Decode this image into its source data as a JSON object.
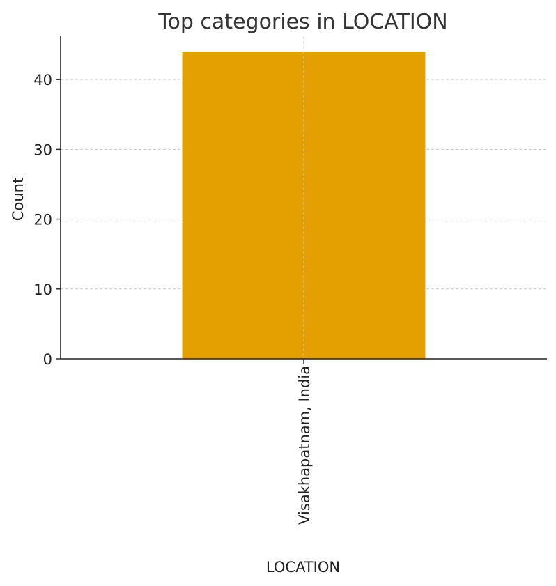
{
  "chart_data": {
    "type": "bar",
    "title": "Top categories in LOCATION",
    "xlabel": "LOCATION",
    "ylabel": "Count",
    "categories": [
      "Visakhapatnam, India"
    ],
    "values": [
      44
    ],
    "ylim": [
      0,
      46.2
    ],
    "yticks": [
      0,
      10,
      20,
      30,
      40
    ],
    "grid": true,
    "bar_color": "#E49F00",
    "grid_color": "#C8C8C8",
    "axis_color": "#222222"
  }
}
